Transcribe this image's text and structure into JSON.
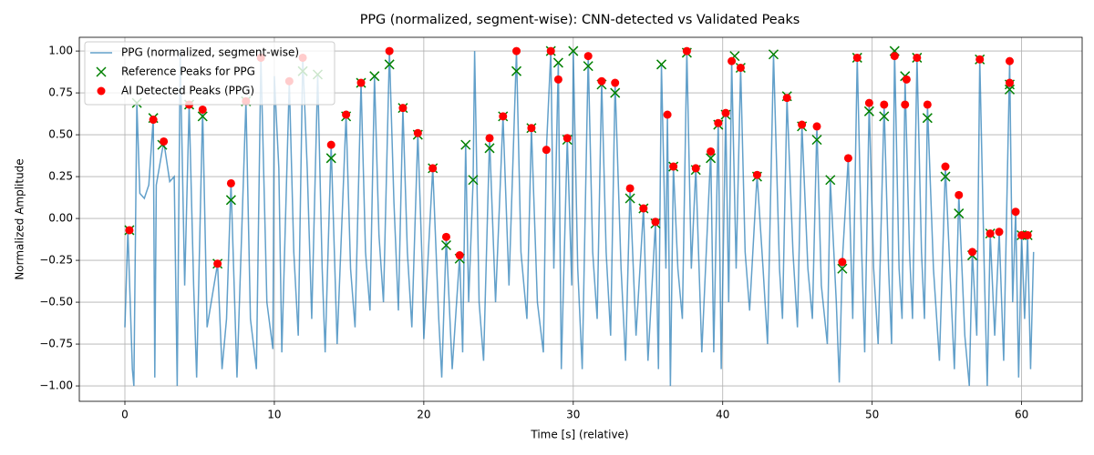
{
  "chart_data": {
    "type": "line",
    "title": "PPG (normalized, segment-wise): CNN-detected vs Validated Peaks",
    "x_label": "Time [s] (relative)",
    "y_label": "Normalized Amplitude",
    "xlim": [
      -3.05,
      64.05
    ],
    "ylim": [
      -1.092,
      1.082
    ],
    "xticks": [
      0,
      10,
      20,
      30,
      40,
      50,
      60
    ],
    "yticks": [
      {
        "value": -1,
        "label": "−1.00"
      },
      {
        "value": -0.75,
        "label": "−0.75"
      },
      {
        "value": -0.5,
        "label": "−0.50"
      },
      {
        "value": -0.25,
        "label": "−0.25"
      },
      {
        "value": 0,
        "label": "0.00"
      },
      {
        "value": 0.25,
        "label": "0.25"
      },
      {
        "value": 0.5,
        "label": "0.50"
      },
      {
        "value": 0.75,
        "label": "0.75"
      },
      {
        "value": 1,
        "label": "1.00"
      }
    ],
    "grid": true,
    "legend": "upper left",
    "series": [
      {
        "name": "PPG (normalized, segment-wise)",
        "color": "#1f77b4",
        "kind": "line",
        "x": [
          0,
          0.2,
          0.5,
          0.6,
          0.8,
          1.0,
          1.3,
          1.6,
          1.9,
          2.0,
          2.1,
          2.6,
          3.0,
          3.3,
          3.5,
          3.7,
          4.0,
          4.3,
          4.6,
          4.8,
          5.2,
          5.5,
          6.2,
          6.5,
          6.8,
          7.1,
          7.5,
          8.1,
          8.4,
          8.8,
          9.1,
          9.5,
          9.9,
          10.0,
          10.3,
          10.5,
          11.0,
          11.3,
          11.6,
          11.9,
          12.2,
          12.5,
          12.9,
          13.2,
          13.4,
          13.8,
          14.2,
          14.8,
          15.1,
          15.4,
          15.8,
          16.1,
          16.4,
          16.7,
          17.0,
          17.3,
          17.7,
          18.0,
          18.3,
          18.6,
          18.9,
          19.2,
          19.6,
          19.9,
          20.0,
          20.6,
          21.0,
          21.2,
          21.5,
          21.9,
          22.4,
          22.6,
          22.8,
          23.0,
          23.3,
          23.4,
          23.7,
          24.0,
          24.4,
          24.8,
          25.3,
          25.7,
          26.2,
          26.5,
          26.9,
          27.2,
          27.6,
          28.0,
          28.2,
          28.5,
          28.7,
          29.0,
          29.2,
          29.6,
          29.9,
          30.0,
          30.3,
          30.6,
          31.0,
          31.3,
          31.6,
          31.9,
          32.2,
          32.5,
          32.8,
          33.2,
          33.5,
          33.8,
          34.2,
          34.7,
          35.0,
          35.5,
          35.7,
          35.9,
          36.2,
          36.3,
          36.5,
          36.7,
          37.0,
          37.3,
          37.6,
          37.9,
          38.2,
          38.6,
          39.2,
          39.4,
          39.7,
          39.9,
          40.2,
          40.4,
          40.6,
          40.9,
          41.2,
          41.5,
          41.8,
          42.3,
          42.7,
          43.0,
          43.4,
          43.8,
          44.0,
          44.3,
          44.7,
          45.0,
          45.3,
          45.7,
          46.0,
          46.3,
          46.6,
          47.0,
          47.2,
          47.6,
          47.8,
          48.0,
          48.4,
          48.7,
          49.0,
          49.3,
          49.5,
          49.8,
          50.1,
          50.4,
          50.8,
          51.1,
          51.3,
          51.5,
          51.8,
          52.0,
          52.2,
          52.5,
          52.7,
          53.0,
          53.3,
          53.5,
          53.7,
          54.1,
          54.5,
          54.9,
          55.3,
          55.5,
          55.8,
          56.2,
          56.5,
          56.7,
          57.0,
          57.2,
          57.5,
          57.7,
          57.9,
          58.2,
          58.5,
          58.8,
          59.2,
          59.4,
          59.6,
          59.8,
          60.0,
          60.2,
          60.4,
          60.6,
          60.8
        ],
        "values": [
          -0.65,
          -0.07,
          -0.9,
          -1.0,
          0.69,
          0.15,
          0.12,
          0.2,
          0.6,
          -0.95,
          0.2,
          0.46,
          0.22,
          0.25,
          -1.0,
          1.0,
          -0.4,
          0.68,
          -0.4,
          -0.95,
          0.65,
          -0.65,
          -0.27,
          -0.9,
          -0.6,
          0.21,
          -0.95,
          0.7,
          -0.6,
          -0.9,
          0.96,
          -0.5,
          -0.78,
          0.85,
          0.3,
          -0.8,
          0.82,
          -0.2,
          -0.7,
          0.96,
          0.3,
          -0.6,
          0.86,
          -0.3,
          -0.8,
          0.44,
          -0.75,
          0.62,
          -0.3,
          -0.65,
          0.81,
          -0.2,
          -0.55,
          0.85,
          -0.1,
          -0.5,
          1.0,
          0.1,
          -0.55,
          0.66,
          -0.2,
          -0.65,
          0.51,
          -0.3,
          -0.72,
          0.3,
          -0.6,
          -0.95,
          -0.11,
          -0.9,
          -0.22,
          -0.8,
          0.44,
          -0.5,
          0.23,
          1.0,
          -0.5,
          -0.85,
          0.48,
          -0.5,
          0.61,
          -0.4,
          1.0,
          -0.2,
          -0.6,
          0.54,
          -0.5,
          -0.8,
          0.41,
          1.0,
          -0.3,
          0.93,
          -0.9,
          0.48,
          -0.4,
          1.0,
          -0.3,
          -0.9,
          0.97,
          -0.2,
          -0.6,
          0.82,
          -0.2,
          -0.7,
          0.81,
          -0.3,
          -0.85,
          0.18,
          -0.7,
          0.06,
          -0.85,
          -0.02,
          -0.9,
          0.92,
          -0.3,
          0.62,
          -1.0,
          0.31,
          -0.3,
          -0.6,
          1.0,
          -0.3,
          0.3,
          -0.8,
          0.4,
          -0.8,
          0.57,
          -0.9,
          0.63,
          -0.5,
          0.94,
          -0.3,
          0.9,
          -0.2,
          -0.55,
          0.26,
          -0.3,
          -0.75,
          0.98,
          -0.3,
          -0.6,
          0.72,
          -0.2,
          -0.65,
          0.56,
          -0.3,
          -0.6,
          0.55,
          -0.4,
          -0.75,
          0.23,
          -0.5,
          -0.98,
          -0.26,
          0.36,
          -0.6,
          0.96,
          -0.2,
          -0.8,
          0.69,
          -0.3,
          -0.75,
          0.68,
          -0.3,
          -0.75,
          1.0,
          -0.3,
          -0.6,
          0.83,
          -0.2,
          -0.6,
          0.96,
          -0.2,
          -0.6,
          0.68,
          -0.3,
          -0.85,
          0.31,
          -0.5,
          -0.9,
          0.14,
          -0.7,
          -1.0,
          -0.2,
          -0.7,
          0.95,
          -0.3,
          -1.0,
          -0.09,
          -0.7,
          -0.08,
          -0.85,
          0.94,
          -0.5,
          0.04,
          -0.95,
          -0.1,
          -0.6,
          -0.1,
          -0.9,
          -0.2
        ]
      },
      {
        "name": "Reference Peaks for PPG",
        "color": "#008000",
        "kind": "x",
        "x": [
          0.3,
          0.8,
          1.9,
          2.5,
          4.3,
          5.2,
          6.2,
          7.1,
          8.1,
          11.9,
          12.9,
          13.8,
          14.8,
          15.8,
          16.7,
          17.7,
          18.6,
          19.6,
          20.6,
          21.5,
          22.4,
          22.8,
          23.3,
          24.4,
          25.3,
          26.2,
          27.2,
          28.5,
          29.0,
          29.6,
          30.0,
          31.0,
          31.9,
          32.8,
          33.8,
          34.7,
          35.5,
          35.9,
          36.7,
          37.6,
          38.2,
          39.2,
          39.7,
          40.2,
          40.8,
          41.2,
          42.3,
          43.4,
          44.3,
          45.3,
          46.3,
          47.2,
          48.0,
          49.0,
          49.8,
          50.8,
          51.5,
          52.2,
          53.0,
          53.7,
          54.9,
          55.8,
          56.7,
          57.2,
          57.9,
          59.2,
          59.2,
          60.0,
          60.4
        ],
        "values": [
          -0.07,
          0.69,
          0.6,
          0.44,
          0.68,
          0.61,
          -0.27,
          0.11,
          0.7,
          0.88,
          0.86,
          0.36,
          0.61,
          0.81,
          0.85,
          0.92,
          0.66,
          0.5,
          0.3,
          -0.16,
          -0.24,
          0.44,
          0.23,
          0.42,
          0.61,
          0.88,
          0.54,
          1.0,
          0.93,
          0.47,
          1.0,
          0.91,
          0.8,
          0.75,
          0.12,
          0.06,
          -0.03,
          0.92,
          0.31,
          0.99,
          0.29,
          0.36,
          0.56,
          0.62,
          0.97,
          0.9,
          0.25,
          0.98,
          0.73,
          0.55,
          0.47,
          0.23,
          -0.3,
          0.96,
          0.64,
          0.61,
          1.0,
          0.85,
          0.96,
          0.6,
          0.25,
          0.03,
          -0.22,
          0.95,
          -0.09,
          0.77,
          0.8,
          -0.1,
          -0.1
        ]
      },
      {
        "name": "AI Detected Peaks (PPG)",
        "color": "#ff0000",
        "kind": "o",
        "x": [
          0.3,
          1.9,
          2.6,
          4.3,
          5.2,
          6.2,
          7.1,
          8.1,
          9.1,
          11.0,
          11.9,
          13.8,
          14.8,
          15.8,
          17.7,
          18.6,
          19.6,
          20.6,
          21.5,
          22.4,
          24.4,
          25.3,
          26.2,
          27.2,
          28.2,
          28.5,
          29.0,
          29.6,
          31.0,
          31.9,
          32.8,
          33.8,
          34.7,
          35.5,
          36.3,
          36.7,
          37.6,
          38.2,
          39.2,
          39.7,
          40.2,
          40.6,
          41.2,
          42.3,
          44.3,
          45.3,
          46.3,
          48.0,
          48.4,
          49.0,
          49.8,
          50.8,
          51.5,
          52.2,
          52.3,
          53.0,
          53.7,
          54.9,
          55.8,
          56.7,
          57.2,
          57.9,
          58.5,
          59.2,
          59.2,
          59.6,
          60.0,
          60.4
        ],
        "values": [
          -0.07,
          0.59,
          0.46,
          0.68,
          0.65,
          -0.27,
          0.21,
          0.7,
          0.96,
          0.82,
          0.96,
          0.44,
          0.62,
          0.81,
          1.0,
          0.66,
          0.51,
          0.3,
          -0.11,
          -0.22,
          0.48,
          0.61,
          1.0,
          0.54,
          0.41,
          1.0,
          0.83,
          0.48,
          0.97,
          0.82,
          0.81,
          0.18,
          0.06,
          -0.02,
          0.62,
          0.31,
          1.0,
          0.3,
          0.4,
          0.57,
          0.63,
          0.94,
          0.9,
          0.26,
          0.72,
          0.56,
          0.55,
          -0.26,
          0.36,
          0.96,
          0.69,
          0.68,
          0.97,
          0.68,
          0.83,
          0.96,
          0.68,
          0.31,
          0.14,
          -0.2,
          0.95,
          -0.09,
          -0.08,
          0.94,
          0.81,
          0.04,
          -0.1,
          -0.1
        ]
      }
    ]
  }
}
